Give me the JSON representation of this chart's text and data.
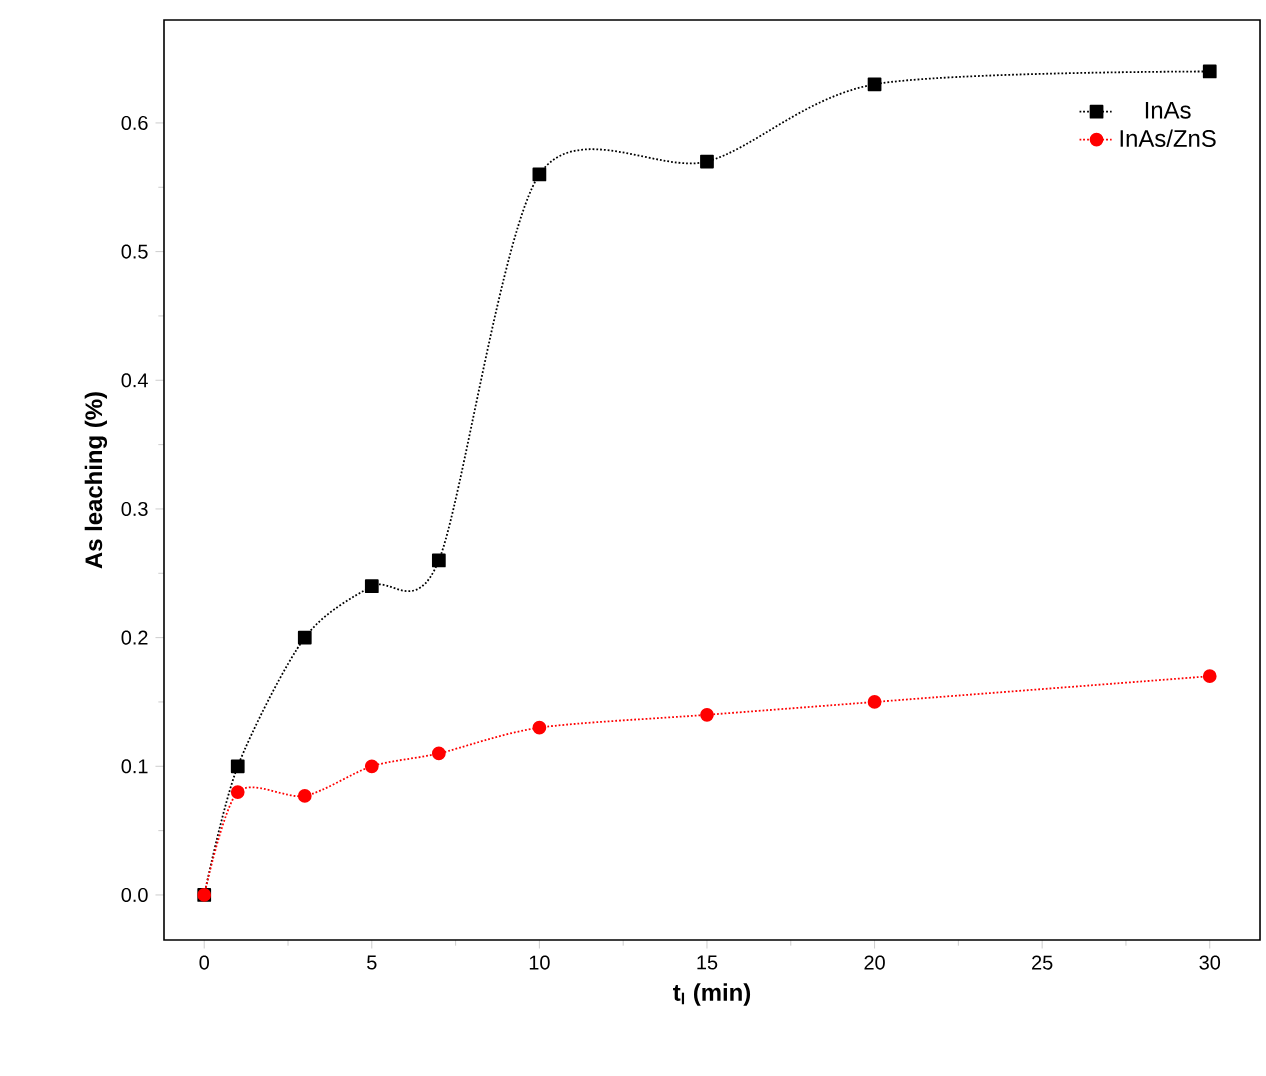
{
  "chart_data": {
    "type": "line",
    "xlabel": "t$_{l}$ (min)",
    "ylabel": "As leaching (%)",
    "x": [
      0,
      1,
      3,
      5,
      7,
      10,
      15,
      20,
      30
    ],
    "series": [
      {
        "name": "InAs",
        "color": "#000000",
        "marker": "square",
        "values": [
          0,
          0.1,
          0.2,
          0.24,
          0.26,
          0.56,
          0.57,
          0.63,
          0.64
        ]
      },
      {
        "name": "InAs/ZnS",
        "color": "#ff0000",
        "marker": "circle",
        "values": [
          0,
          0.08,
          0.077,
          0.1,
          0.11,
          0.13,
          0.14,
          0.15,
          0.17
        ]
      }
    ],
    "xlim": [
      -1.2,
      31.5
    ],
    "ylim": [
      -0.035,
      0.68
    ],
    "xticks": [
      0,
      5,
      10,
      15,
      20,
      25,
      30
    ],
    "yticks": [
      {
        "value": 0,
        "label": "0.0"
      },
      {
        "value": 0.1,
        "label": "0.1"
      },
      {
        "value": 0.2,
        "label": "0.2"
      },
      {
        "value": 0.3,
        "label": "0.3"
      },
      {
        "value": 0.4,
        "label": "0.4"
      },
      {
        "value": 0.5,
        "label": "0.5"
      },
      {
        "value": 0.6,
        "label": "0.6"
      }
    ],
    "line_style": "dotted",
    "legend": "top right",
    "grid": false
  }
}
